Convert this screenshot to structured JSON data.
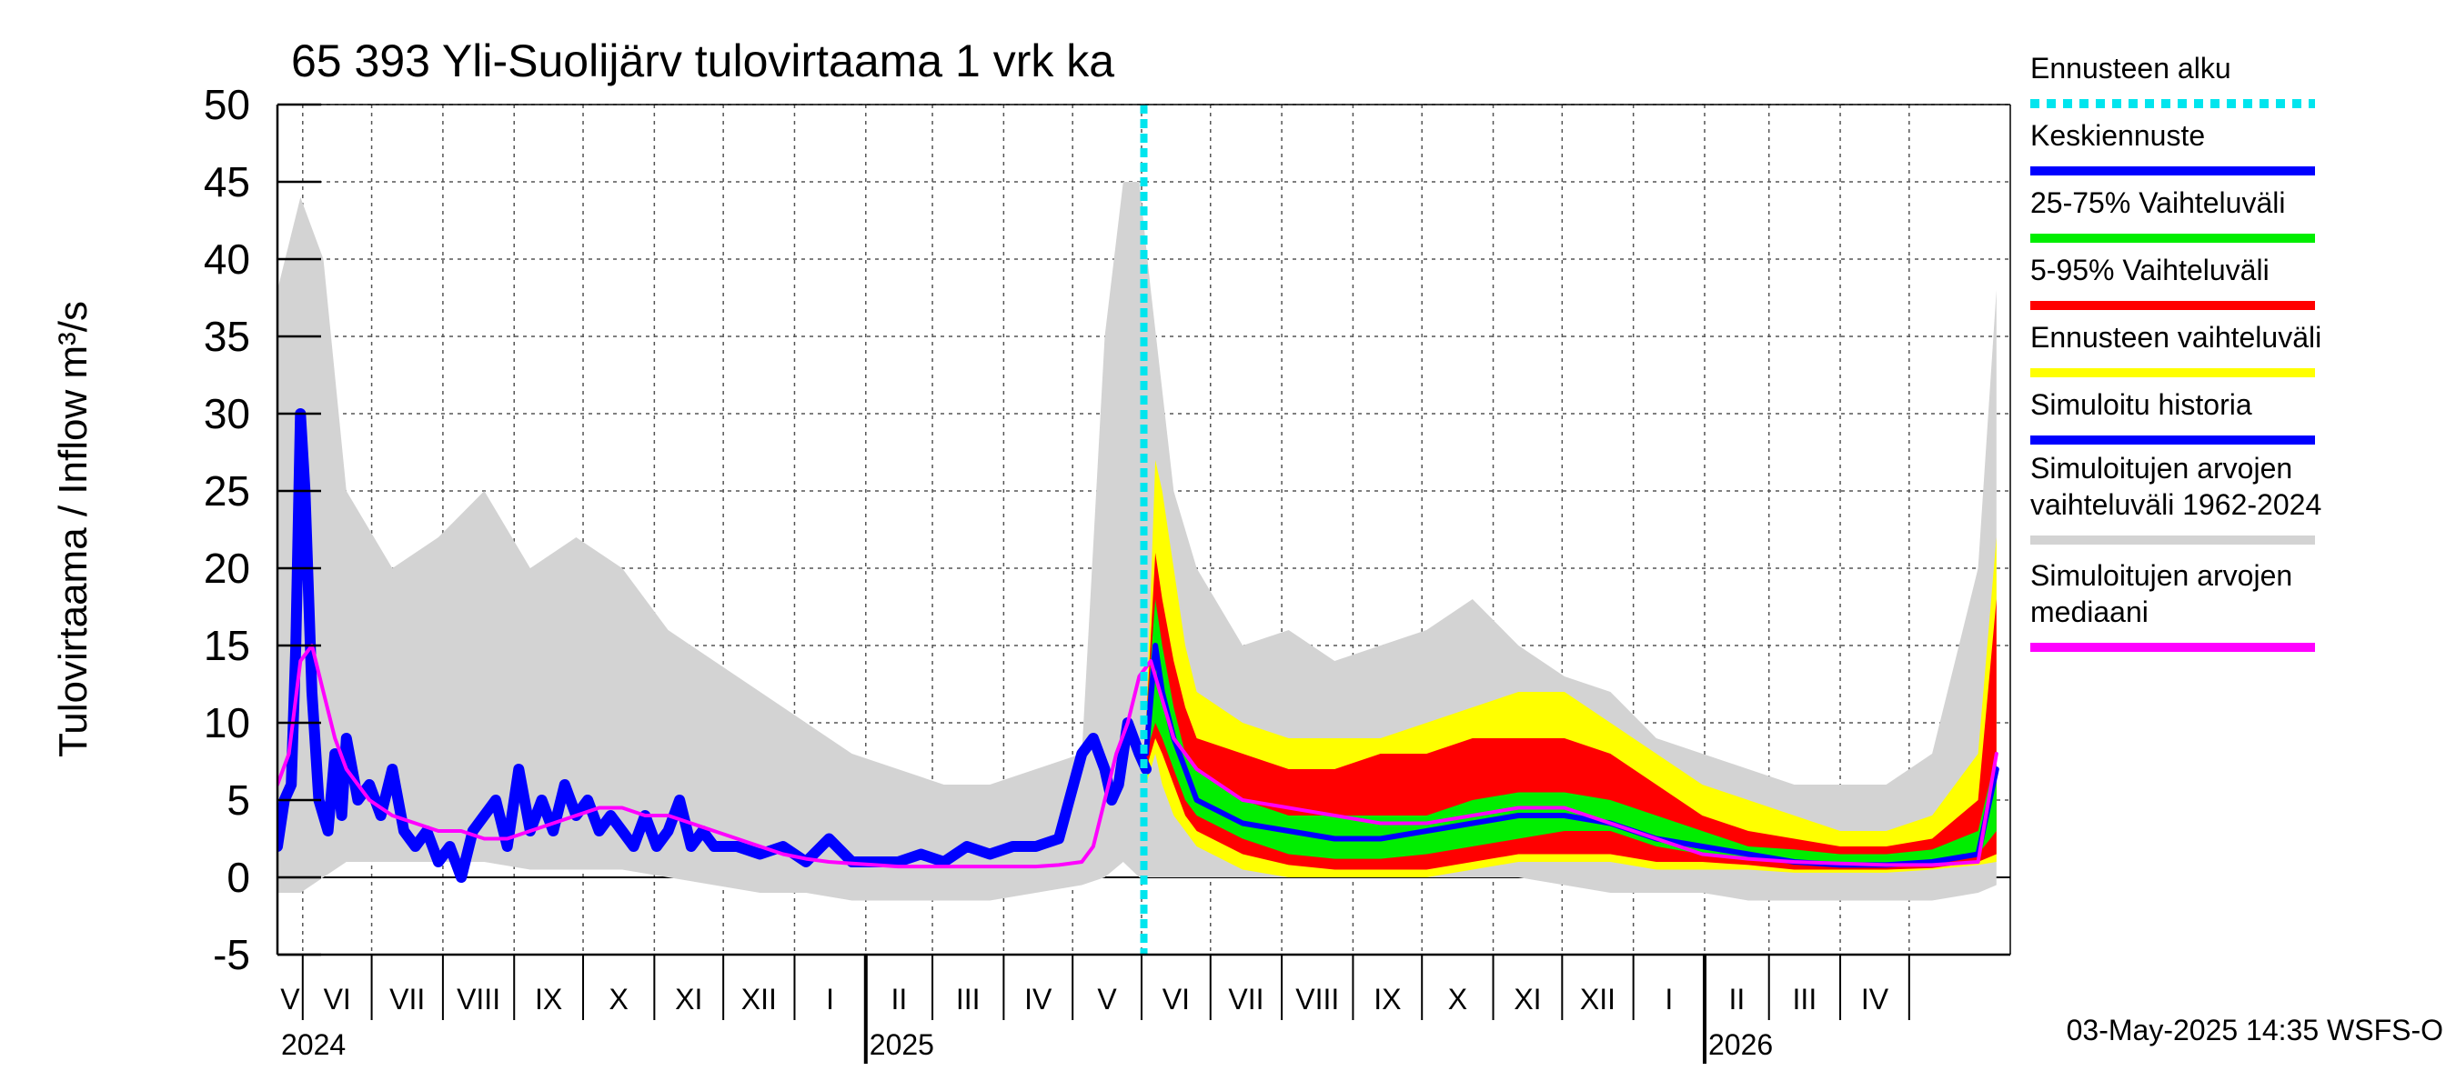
{
  "chart_data": {
    "type": "area",
    "title": "65 393 Yli-Suolijärv tulovirtaama 1 vrk ka",
    "ylabel": "Tulovirtaama / Inflow    m³/s",
    "xlabel": "",
    "ylim": [
      -5,
      50
    ],
    "yticks": [
      -5,
      0,
      5,
      10,
      15,
      20,
      25,
      30,
      35,
      40,
      45,
      50
    ],
    "grid": true,
    "time_axis": {
      "start": "2024-04-20",
      "end": "2026-05-14",
      "forecast_start": "2025-05-03",
      "month_labels": [
        "V",
        "VI",
        "VII",
        "VIII",
        "IX",
        "X",
        "XI",
        "XII",
        "I",
        "II",
        "III",
        "IV",
        "V",
        "VI",
        "VII",
        "VIII",
        "IX",
        "X",
        "XI",
        "XII",
        "I",
        "II",
        "III",
        "IV"
      ],
      "years": [
        "2024",
        "2025",
        "2026"
      ]
    },
    "legend_placement": "right",
    "series": [
      {
        "name": "Simuloitujen arvojen vaihteluväli 1962-2024",
        "color": "#d3d3d3",
        "kind": "band",
        "days": [
          0,
          10,
          20,
          30,
          50,
          70,
          90,
          110,
          130,
          150,
          170,
          190,
          210,
          230,
          250,
          270,
          290,
          310,
          330,
          350,
          360,
          368,
          375,
          380,
          390,
          400,
          420,
          440,
          460,
          480,
          500,
          520,
          540,
          560,
          580,
          600,
          620,
          640,
          660,
          680,
          700,
          720,
          740,
          748
        ],
        "low": [
          -1,
          -1,
          0,
          1,
          1,
          1,
          1,
          0.5,
          0.5,
          0.5,
          0,
          -0.5,
          -1,
          -1,
          -1.5,
          -1.5,
          -1.5,
          -1.5,
          -1,
          -0.5,
          0,
          1,
          0,
          0,
          0,
          0,
          0,
          0,
          0,
          0,
          0,
          0,
          0,
          -0.5,
          -1,
          -1,
          -1,
          -1.5,
          -1.5,
          -1.5,
          -1.5,
          -1.5,
          -1,
          -0.5
        ],
        "high": [
          38,
          44,
          40,
          25,
          20,
          22,
          25,
          20,
          22,
          20,
          16,
          14,
          12,
          10,
          8,
          7,
          6,
          6,
          7,
          8,
          35,
          45,
          45,
          38,
          25,
          20,
          15,
          16,
          14,
          15,
          16,
          18,
          15,
          13,
          12,
          9,
          8,
          7,
          6,
          6,
          6,
          8,
          20,
          38
        ]
      },
      {
        "name": "Ennusteen vaihteluväli",
        "color": "#ffff00",
        "kind": "band",
        "days": [
          378,
          382,
          385,
          390,
          395,
          400,
          420,
          440,
          460,
          480,
          500,
          520,
          540,
          560,
          580,
          600,
          620,
          640,
          660,
          680,
          700,
          720,
          740,
          748
        ],
        "low": [
          6,
          8,
          6,
          4,
          3,
          2,
          0.5,
          0,
          0,
          0,
          0,
          0.5,
          1,
          1,
          1,
          0.5,
          0.5,
          0.5,
          0.3,
          0.3,
          0.3,
          0.5,
          0.8,
          1
        ],
        "high": [
          10,
          27,
          25,
          20,
          15,
          12,
          10,
          9,
          9,
          9,
          10,
          11,
          12,
          12,
          10,
          8,
          6,
          5,
          4,
          3,
          3,
          4,
          8,
          22
        ]
      },
      {
        "name": "5-95% Vaihteluväli",
        "color": "#ff0000",
        "kind": "band",
        "days": [
          378,
          382,
          385,
          390,
          395,
          400,
          420,
          440,
          460,
          480,
          500,
          520,
          540,
          560,
          580,
          600,
          620,
          640,
          660,
          680,
          700,
          720,
          740,
          748
        ],
        "low": [
          7,
          9,
          8,
          6,
          4,
          3,
          1.5,
          0.8,
          0.5,
          0.5,
          0.5,
          1,
          1.5,
          1.5,
          1.5,
          1,
          1,
          0.8,
          0.5,
          0.5,
          0.5,
          0.6,
          1,
          1.5
        ],
        "high": [
          10,
          21,
          18,
          14,
          11,
          9,
          8,
          7,
          7,
          8,
          8,
          9,
          9,
          9,
          8,
          6,
          4,
          3,
          2.5,
          2,
          2,
          2.5,
          5,
          18
        ]
      },
      {
        "name": "25-75% Vaihteluväli",
        "color": "#00ee00",
        "kind": "band",
        "days": [
          378,
          382,
          385,
          390,
          395,
          400,
          420,
          440,
          460,
          480,
          500,
          520,
          540,
          560,
          580,
          600,
          620,
          640,
          660,
          680,
          700,
          720,
          740,
          748
        ],
        "low": [
          8,
          10,
          9,
          7,
          5,
          4,
          2.5,
          1.5,
          1.2,
          1.2,
          1.5,
          2,
          2.5,
          3,
          3,
          2,
          1.5,
          1.2,
          1,
          0.8,
          0.8,
          0.9,
          1.5,
          3
        ],
        "high": [
          10,
          18,
          15,
          11,
          8,
          7,
          5,
          4,
          4,
          4,
          4,
          5,
          5.5,
          5.5,
          5,
          4,
          3,
          2,
          1.8,
          1.5,
          1.5,
          1.8,
          3,
          8
        ]
      },
      {
        "name": "Simuloitu historia",
        "color": "#0000ff",
        "kind": "line",
        "width": 12,
        "days": [
          0,
          3,
          6,
          8,
          10,
          12,
          15,
          18,
          22,
          25,
          28,
          30,
          35,
          40,
          45,
          50,
          55,
          60,
          65,
          70,
          75,
          80,
          85,
          90,
          95,
          100,
          105,
          110,
          115,
          120,
          125,
          130,
          135,
          140,
          145,
          150,
          155,
          160,
          165,
          170,
          175,
          180,
          185,
          190,
          200,
          210,
          220,
          230,
          240,
          250,
          260,
          270,
          280,
          290,
          300,
          310,
          320,
          330,
          340,
          350,
          355,
          360,
          363,
          366,
          370,
          375,
          378
        ],
        "values": [
          2,
          5,
          6,
          15,
          30,
          25,
          12,
          5,
          3,
          8,
          4,
          9,
          5,
          6,
          4,
          7,
          3,
          2,
          3,
          1,
          2,
          0,
          3,
          4,
          5,
          2,
          7,
          3,
          5,
          3,
          6,
          4,
          5,
          3,
          4,
          3,
          2,
          4,
          2,
          3,
          5,
          2,
          3,
          2,
          2,
          1.5,
          2,
          1,
          2.5,
          1,
          1,
          1,
          1.5,
          1,
          2,
          1.5,
          2,
          2,
          2.5,
          8,
          9,
          7,
          5,
          6,
          10,
          8,
          7
        ]
      },
      {
        "name": "Keskiennuste",
        "color": "#0000ff",
        "kind": "line",
        "width": 6,
        "days": [
          378,
          382,
          385,
          390,
          395,
          400,
          420,
          440,
          460,
          480,
          500,
          520,
          540,
          560,
          580,
          600,
          620,
          640,
          660,
          680,
          700,
          720,
          740,
          748
        ],
        "values": [
          8,
          15,
          12,
          9,
          7,
          5,
          3.5,
          3,
          2.5,
          2.5,
          3,
          3.5,
          4,
          4,
          3.5,
          2.5,
          2,
          1.5,
          1,
          0.8,
          0.8,
          1,
          1.5,
          7
        ]
      },
      {
        "name": "Simuloitujen arvojen mediaani",
        "color": "#ff00ff",
        "kind": "line",
        "width": 4,
        "days": [
          0,
          5,
          10,
          15,
          20,
          25,
          30,
          40,
          50,
          60,
          70,
          80,
          90,
          100,
          110,
          120,
          130,
          140,
          150,
          160,
          170,
          180,
          190,
          200,
          210,
          220,
          230,
          240,
          250,
          260,
          270,
          280,
          290,
          300,
          310,
          320,
          330,
          340,
          350,
          355,
          360,
          365,
          370,
          375,
          380,
          390,
          400,
          420,
          440,
          460,
          480,
          500,
          520,
          540,
          560,
          580,
          600,
          620,
          640,
          660,
          680,
          700,
          720,
          740,
          748
        ],
        "values": [
          6,
          8,
          14,
          15,
          12,
          9,
          7,
          5,
          4,
          3.5,
          3,
          3,
          2.5,
          2.5,
          3,
          3.5,
          4,
          4.5,
          4.5,
          4,
          4,
          3.5,
          3,
          2.5,
          2,
          1.5,
          1.2,
          1,
          0.9,
          0.8,
          0.7,
          0.7,
          0.7,
          0.7,
          0.7,
          0.7,
          0.7,
          0.8,
          1,
          2,
          5,
          8,
          10,
          13,
          14,
          9,
          7,
          5,
          4.5,
          4,
          3.5,
          3.5,
          4,
          4.5,
          4.5,
          3.5,
          2.5,
          1.5,
          1.2,
          1,
          0.9,
          0.8,
          0.8,
          1,
          8
        ]
      }
    ],
    "forecast_marker": {
      "name": "Ennusteen alku",
      "color": "#00e5ee",
      "day": 377
    }
  },
  "legend": [
    {
      "label": "Ennusteen alku",
      "color": "#00e5ee",
      "style": "dotted"
    },
    {
      "label": "Keskiennuste",
      "color": "#0000ff",
      "style": "solid"
    },
    {
      "label": "25-75% Vaihteluväli",
      "color": "#00ee00",
      "style": "solid"
    },
    {
      "label": "5-95% Vaihteluväli",
      "color": "#ff0000",
      "style": "solid"
    },
    {
      "label": "Ennusteen vaihteluväli",
      "color": "#ffff00",
      "style": "solid"
    },
    {
      "label": "Simuloitu historia",
      "color": "#0000ff",
      "style": "solid"
    },
    {
      "label": "Simuloitujen arvojen vaihteluväli 1962-2024",
      "lines": [
        "Simuloitujen arvojen",
        "vaihteluväli 1962-2024"
      ],
      "color": "#d3d3d3",
      "style": "solid"
    },
    {
      "label": "Simuloitujen arvojen mediaani",
      "lines": [
        "Simuloitujen arvojen",
        "mediaani"
      ],
      "color": "#ff00ff",
      "style": "solid"
    }
  ],
  "footer": "03-May-2025 14:35 WSFS-O"
}
